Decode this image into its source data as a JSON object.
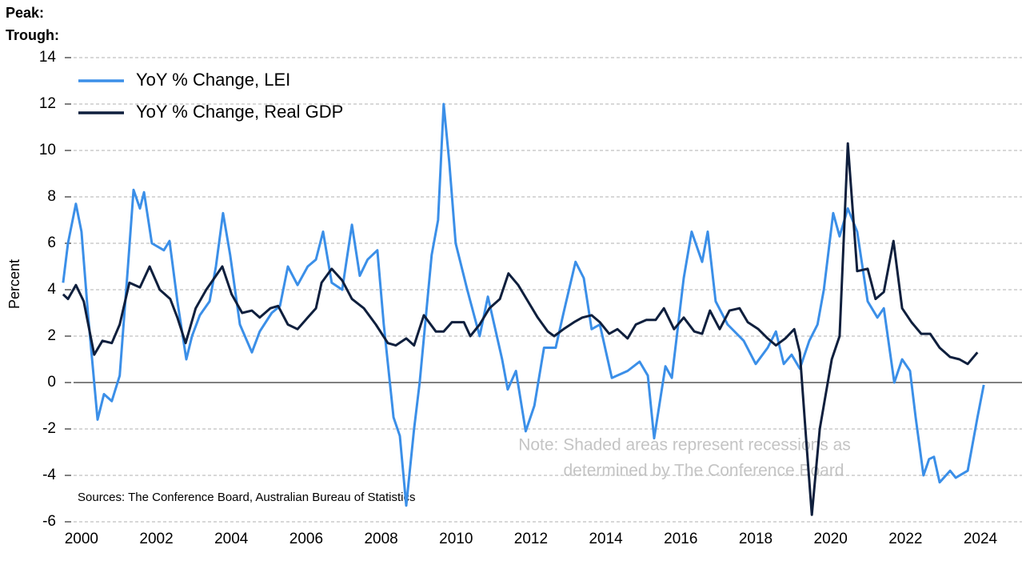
{
  "chart_data": {
    "type": "line",
    "peak_label": "Peak:",
    "trough_label": "Trough:",
    "y_label": "Percent",
    "sources": "Sources: The Conference Board, Australian Bureau of Statistics",
    "note_lines": [
      "Note: Shaded areas represent recessions as",
      "determined by The Conference Board"
    ],
    "xlim": [
      1999.49,
      2025.11
    ],
    "xticks": [
      2000,
      2002,
      2004,
      2006,
      2008,
      2010,
      2012,
      2014,
      2016,
      2018,
      2020,
      2022,
      2024
    ],
    "ylim": [
      -6,
      14
    ],
    "yticks": [
      -6,
      -4,
      -2,
      0,
      2,
      4,
      6,
      8,
      10,
      12,
      14
    ],
    "grid": true,
    "legend": "top-left",
    "series": [
      {
        "name": "YoY % Change, LEI",
        "color": "#3b8fe8",
        "x": [
          1999.51,
          1999.64,
          1999.85,
          2000.0,
          2000.17,
          2000.43,
          2000.6,
          2000.81,
          2001.02,
          2001.24,
          2001.39,
          2001.56,
          2001.67,
          2001.88,
          2002.2,
          2002.35,
          2002.56,
          2002.8,
          2002.95,
          2003.16,
          2003.42,
          2003.59,
          2003.78,
          2003.97,
          2004.23,
          2004.55,
          2004.76,
          2005.08,
          2005.3,
          2005.51,
          2005.77,
          2006.04,
          2006.26,
          2006.45,
          2006.68,
          2006.96,
          2007.22,
          2007.43,
          2007.64,
          2007.9,
          2008.07,
          2008.33,
          2008.5,
          2008.67,
          2008.88,
          2009.03,
          2009.35,
          2009.52,
          2009.67,
          2009.82,
          2009.99,
          2010.3,
          2010.63,
          2010.85,
          2011.23,
          2011.38,
          2011.6,
          2011.86,
          2012.09,
          2012.35,
          2012.66,
          2012.87,
          2013.19,
          2013.41,
          2013.62,
          2013.84,
          2014.16,
          2014.58,
          2014.9,
          2015.12,
          2015.29,
          2015.59,
          2015.76,
          2016.08,
          2016.29,
          2016.57,
          2016.72,
          2016.93,
          2017.25,
          2017.68,
          2018.0,
          2018.32,
          2018.54,
          2018.75,
          2018.96,
          2019.18,
          2019.43,
          2019.65,
          2019.82,
          2020.07,
          2020.24,
          2020.46,
          2020.71,
          2020.99,
          2021.25,
          2021.42,
          2021.7,
          2021.91,
          2022.12,
          2022.27,
          2022.48,
          2022.63,
          2022.76,
          2022.91,
          2023.19,
          2023.34,
          2023.66,
          2023.92,
          2024.09
        ],
        "values": [
          4.3,
          6.0,
          7.7,
          6.5,
          3.0,
          -1.6,
          -0.5,
          -0.8,
          0.3,
          5.0,
          8.3,
          7.5,
          8.2,
          6.0,
          5.7,
          6.1,
          3.5,
          1.0,
          2.0,
          2.9,
          3.5,
          5.0,
          7.3,
          5.5,
          2.5,
          1.3,
          2.2,
          3.0,
          3.3,
          5.0,
          4.2,
          5.0,
          5.3,
          6.5,
          4.3,
          4.0,
          6.8,
          4.6,
          5.3,
          5.7,
          2.5,
          -1.5,
          -2.3,
          -5.3,
          -2.0,
          0.0,
          5.5,
          7.0,
          12.0,
          9.5,
          6.0,
          4.0,
          2.0,
          3.7,
          1.0,
          -0.3,
          0.5,
          -2.1,
          -1.0,
          1.5,
          1.5,
          3.0,
          5.2,
          4.5,
          2.3,
          2.5,
          0.2,
          0.5,
          0.9,
          0.3,
          -2.4,
          0.7,
          0.2,
          4.5,
          6.5,
          5.2,
          6.5,
          3.5,
          2.5,
          1.8,
          0.8,
          1.5,
          2.2,
          0.8,
          1.2,
          0.6,
          1.8,
          2.5,
          4.0,
          7.3,
          6.3,
          7.5,
          6.5,
          3.5,
          2.8,
          3.2,
          0.0,
          1.0,
          0.5,
          -1.5,
          -4.0,
          -3.3,
          -3.2,
          -4.3,
          -3.8,
          -4.1,
          -3.8,
          -1.5,
          -0.1
        ]
      },
      {
        "name": "YoY % Change, Real GDP",
        "color": "#0f1f3d",
        "x": [
          1999.51,
          1999.64,
          1999.85,
          2000.06,
          2000.34,
          2000.56,
          2000.81,
          2001.02,
          2001.28,
          2001.56,
          2001.82,
          2002.09,
          2002.37,
          2002.56,
          2002.78,
          2003.05,
          2003.33,
          2003.59,
          2003.76,
          2004.01,
          2004.29,
          2004.55,
          2004.76,
          2005.04,
          2005.25,
          2005.51,
          2005.77,
          2006.04,
          2006.26,
          2006.41,
          2006.68,
          2006.96,
          2007.22,
          2007.54,
          2007.86,
          2008.18,
          2008.39,
          2008.67,
          2008.88,
          2009.14,
          2009.46,
          2009.67,
          2009.89,
          2010.21,
          2010.38,
          2010.63,
          2010.89,
          2011.17,
          2011.4,
          2011.66,
          2011.92,
          2012.18,
          2012.45,
          2012.62,
          2012.87,
          2013.15,
          2013.37,
          2013.62,
          2013.84,
          2014.09,
          2014.31,
          2014.58,
          2014.8,
          2015.08,
          2015.33,
          2015.55,
          2015.82,
          2016.08,
          2016.36,
          2016.57,
          2016.78,
          2017.04,
          2017.3,
          2017.57,
          2017.79,
          2018.07,
          2018.32,
          2018.54,
          2018.79,
          2019.03,
          2019.18,
          2019.35,
          2019.5,
          2019.71,
          2020.03,
          2020.24,
          2020.46,
          2020.71,
          2020.99,
          2021.2,
          2021.42,
          2021.68,
          2021.91,
          2022.16,
          2022.42,
          2022.66,
          2022.91,
          2023.19,
          2023.44,
          2023.66,
          2023.92
        ],
        "values": [
          3.8,
          3.6,
          4.2,
          3.5,
          1.2,
          1.8,
          1.7,
          2.5,
          4.3,
          4.1,
          5.0,
          4.0,
          3.6,
          2.8,
          1.7,
          3.2,
          4.0,
          4.6,
          5.0,
          3.8,
          3.0,
          3.1,
          2.8,
          3.2,
          3.3,
          2.5,
          2.3,
          2.8,
          3.2,
          4.3,
          4.9,
          4.4,
          3.6,
          3.2,
          2.5,
          1.7,
          1.6,
          1.9,
          1.6,
          2.9,
          2.2,
          2.2,
          2.6,
          2.6,
          2.0,
          2.5,
          3.2,
          3.6,
          4.7,
          4.2,
          3.5,
          2.8,
          2.2,
          2.0,
          2.3,
          2.6,
          2.8,
          2.9,
          2.6,
          2.1,
          2.3,
          1.9,
          2.5,
          2.7,
          2.7,
          3.2,
          2.3,
          2.8,
          2.2,
          2.1,
          3.1,
          2.3,
          3.1,
          3.2,
          2.6,
          2.3,
          1.9,
          1.6,
          1.9,
          2.3,
          1.3,
          -2.5,
          -5.7,
          -2.0,
          1.0,
          2.0,
          10.3,
          4.8,
          4.9,
          3.6,
          3.9,
          6.1,
          3.2,
          2.6,
          2.1,
          2.1,
          1.5,
          1.1,
          1.0,
          0.8,
          1.3
        ]
      }
    ]
  }
}
